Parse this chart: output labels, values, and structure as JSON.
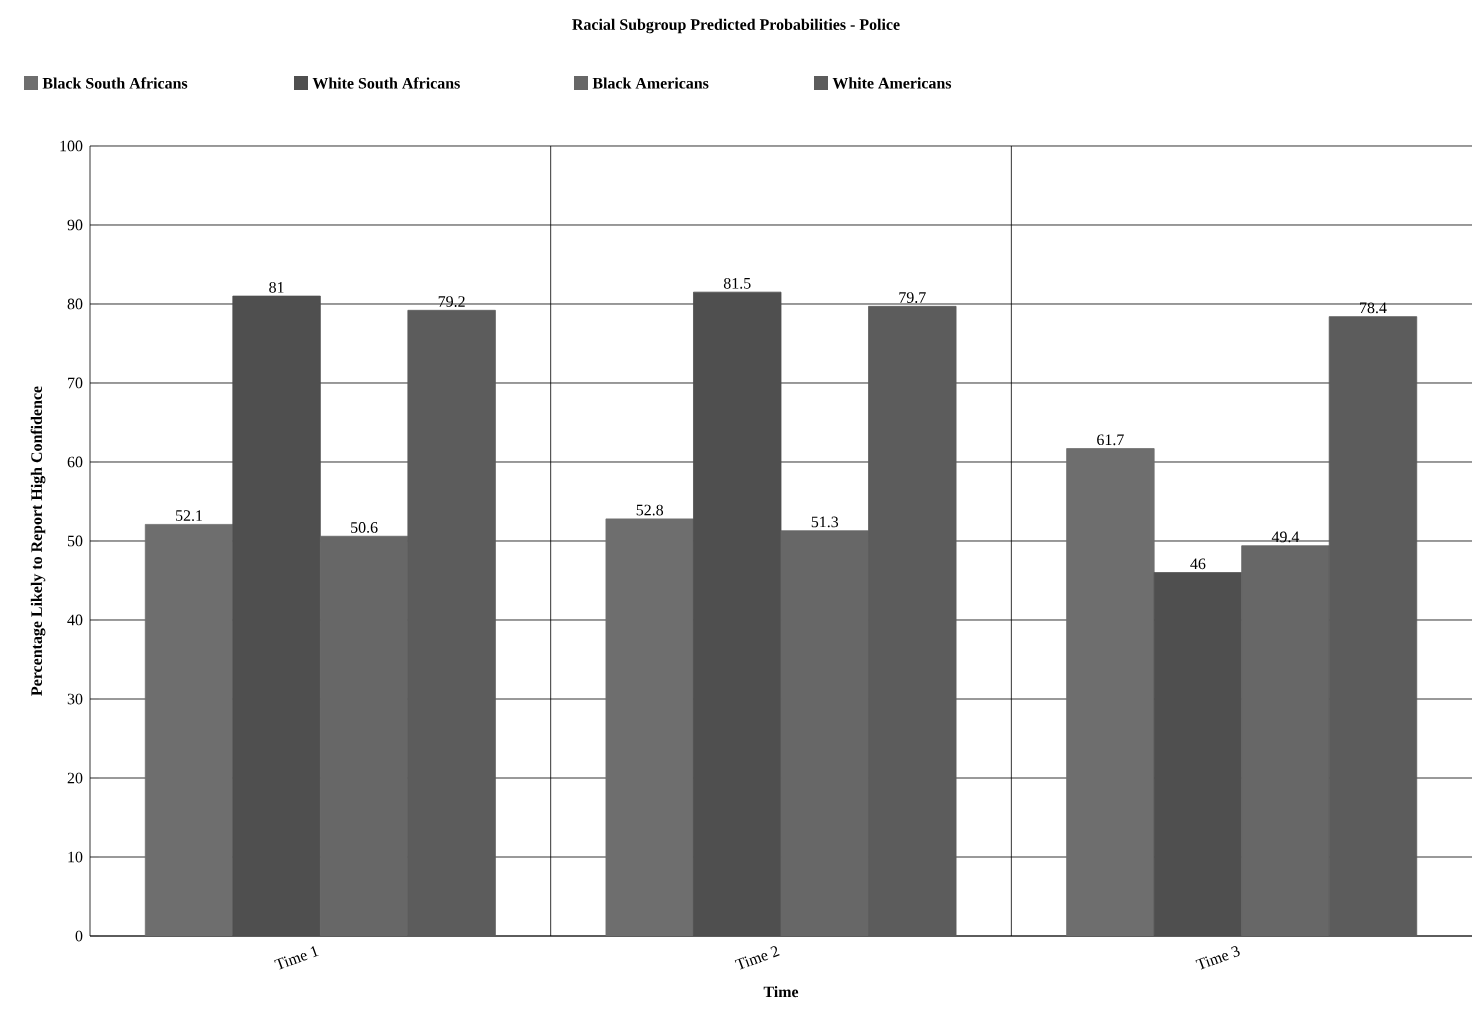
{
  "chart_data": {
    "type": "bar",
    "title": "Racial Subgroup Predicted Probabilities - Police",
    "xlabel": "Time",
    "ylabel": "Percentage Likely to Report High Confidence",
    "categories": [
      "Time 1",
      "Time 2",
      "Time 3"
    ],
    "series": [
      {
        "name": "Black South Africans",
        "color": "#6e6e6e",
        "values": [
          52.1,
          52.8,
          61.7
        ]
      },
      {
        "name": "White South Africans",
        "color": "#4f4f4f",
        "values": [
          81,
          81.5,
          46
        ]
      },
      {
        "name": "Black Americans",
        "color": "#676767",
        "values": [
          50.6,
          51.3,
          49.4
        ]
      },
      {
        "name": "White Americans",
        "color": "#5c5c5c",
        "values": [
          79.2,
          79.7,
          78.4
        ]
      }
    ],
    "ylim": [
      0,
      100
    ],
    "yticks": [
      0,
      10,
      20,
      30,
      40,
      50,
      60,
      70,
      80,
      90,
      100
    ],
    "grid": true,
    "legend": "top left",
    "data_labels": true
  }
}
